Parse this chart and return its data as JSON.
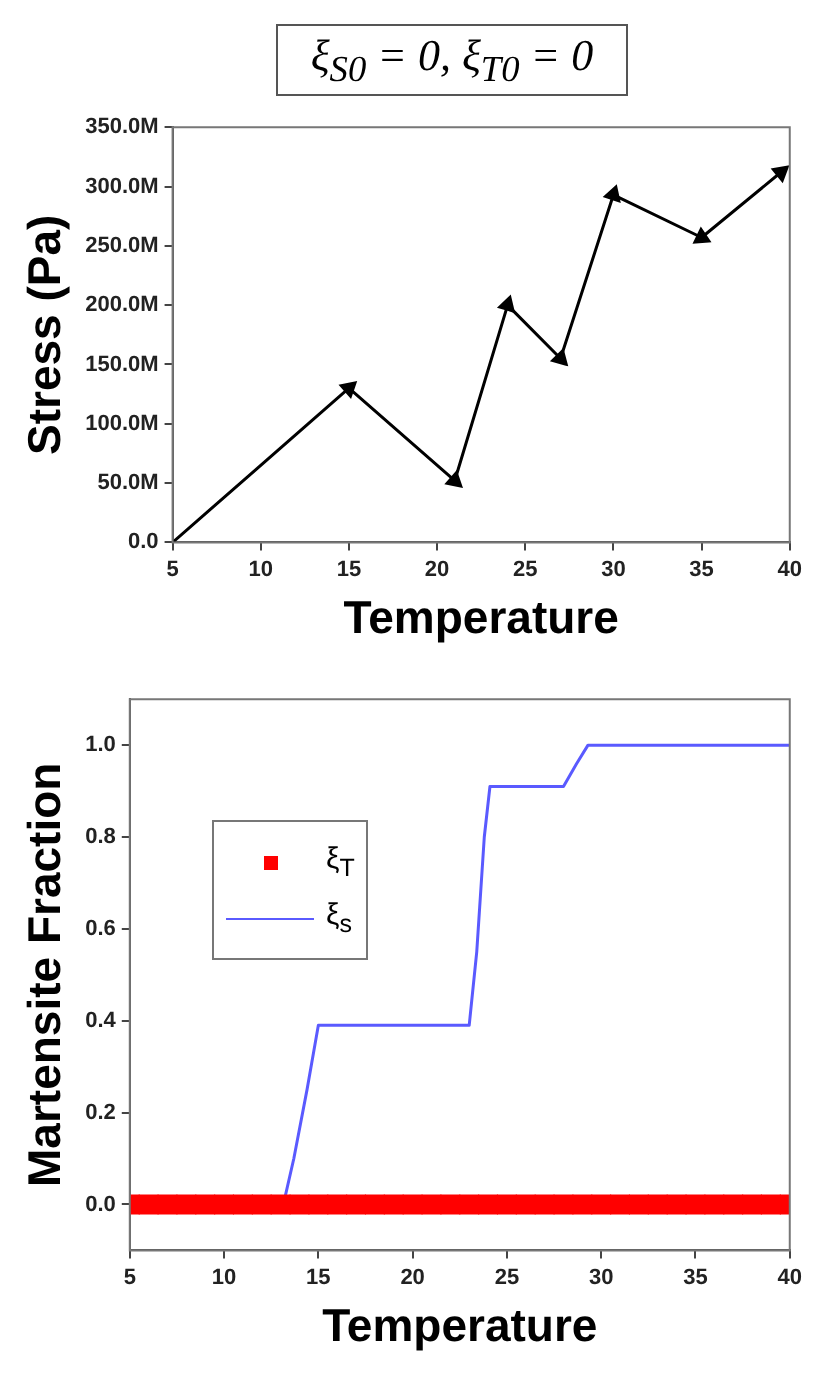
{
  "chart_data": [
    {
      "type": "line",
      "title": "ξ$_{S0}$ = 0, ξ$_{T0}$ = 0",
      "xlabel": "Temperature",
      "ylabel": "Stress (Pa)",
      "marker": "triangle",
      "grid": false,
      "legend": false,
      "xlim": [
        5,
        40
      ],
      "xticks": [
        5,
        10,
        15,
        20,
        25,
        30,
        35,
        40
      ],
      "ylim": [
        0,
        350000000
      ],
      "yticks": [
        {
          "value": 0,
          "label": "0.0"
        },
        {
          "value": 50000000,
          "label": "50.0M"
        },
        {
          "value": 100000000,
          "label": "100.0M"
        },
        {
          "value": 150000000,
          "label": "150.0M"
        },
        {
          "value": 200000000,
          "label": "200.0M"
        },
        {
          "value": 250000000,
          "label": "250.0M"
        },
        {
          "value": 300000000,
          "label": "300.0M"
        },
        {
          "value": 350000000,
          "label": "350.0M"
        }
      ],
      "series": [
        {
          "color": "#000000",
          "x": [
            5,
            15,
            21,
            24,
            27,
            30,
            35,
            39.5
          ],
          "values": [
            0,
            130000000,
            52000000,
            200000000,
            155000000,
            293000000,
            257000000,
            312000000
          ]
        }
      ]
    },
    {
      "type": "line",
      "xlabel": "Temperature",
      "ylabel": "Martensite Fraction",
      "grid": false,
      "legend": "top left",
      "xlim": [
        5,
        40
      ],
      "xticks": [
        5,
        10,
        15,
        20,
        25,
        30,
        35,
        40
      ],
      "ylim": [
        -0.1,
        1.1
      ],
      "yticks": [
        {
          "value": 0,
          "label": "0.0"
        },
        {
          "value": 0.2,
          "label": "0.2"
        },
        {
          "value": 0.4,
          "label": "0.4"
        },
        {
          "value": 0.6,
          "label": "0.6"
        },
        {
          "value": 0.8,
          "label": "0.8"
        },
        {
          "value": 1,
          "label": "1.0"
        }
      ],
      "series": [
        {
          "name": "ξ$_{T}$",
          "type": "scatter",
          "marker": "square",
          "color": "#ff0000",
          "x": [
            5,
            6,
            7,
            8,
            9,
            10,
            11,
            12,
            13,
            14,
            15,
            16,
            17,
            18,
            19,
            20,
            21,
            22,
            23,
            24,
            25,
            26,
            27,
            28,
            29,
            30,
            31,
            32,
            33,
            34,
            35,
            36,
            37,
            38,
            39,
            40
          ],
          "values": [
            0,
            0,
            0,
            0,
            0,
            0,
            0,
            0,
            0,
            0,
            0,
            0,
            0,
            0,
            0,
            0,
            0,
            0,
            0,
            0,
            0,
            0,
            0,
            0,
            0,
            0,
            0,
            0,
            0,
            0,
            0,
            0,
            0,
            0,
            0,
            0
          ]
        },
        {
          "name": "ξ$_{s}$",
          "type": "line",
          "marker": "none",
          "color": "#5a5aff",
          "x": [
            13.2,
            13.7,
            14.4,
            15,
            23,
            23.4,
            23.8,
            24.1,
            28,
            28.7,
            29.3,
            40
          ],
          "values": [
            0.01,
            0.1,
            0.25,
            0.39,
            0.39,
            0.55,
            0.8,
            0.91,
            0.91,
            0.96,
            1,
            1
          ]
        }
      ]
    }
  ]
}
